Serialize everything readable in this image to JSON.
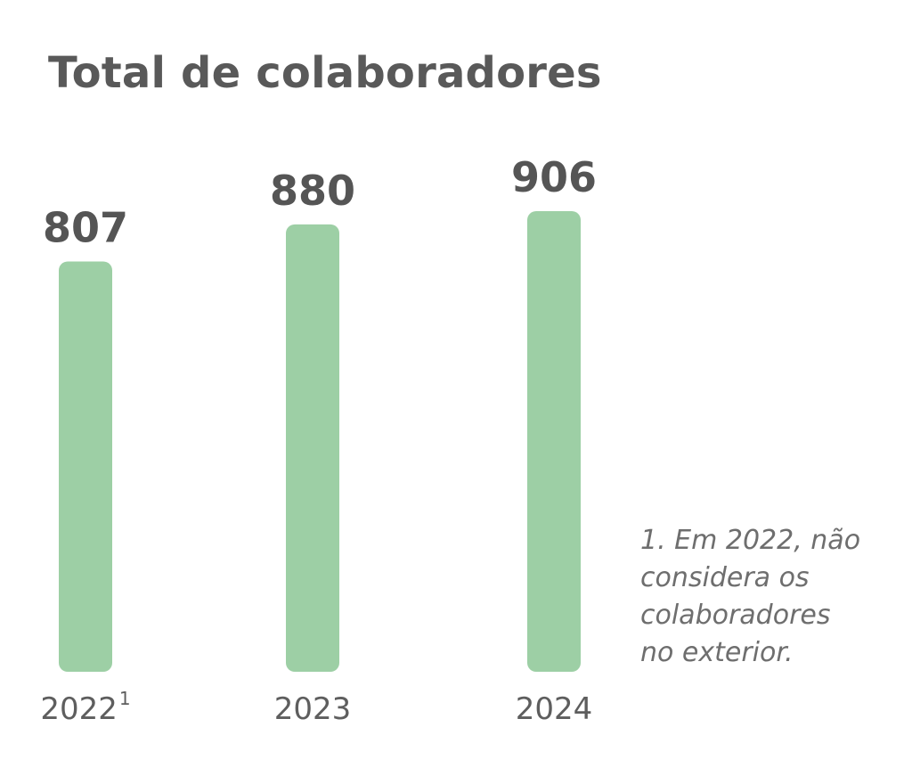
{
  "chart_data": {
    "type": "bar",
    "title": "Total de colaboradores",
    "categories": [
      "2022",
      "2023",
      "2024"
    ],
    "category_superscripts": [
      "1",
      "",
      ""
    ],
    "values": [
      807,
      880,
      906
    ],
    "value_labels": [
      "807",
      "880",
      "906"
    ],
    "xlabel": "",
    "ylabel": "",
    "grid": false,
    "legend": "none",
    "bar_color": "#9dcfa5",
    "label_color": "#555555",
    "footnote": "1. Em 2022, não\nconsidera os\ncolaboradores\nno exterior."
  }
}
